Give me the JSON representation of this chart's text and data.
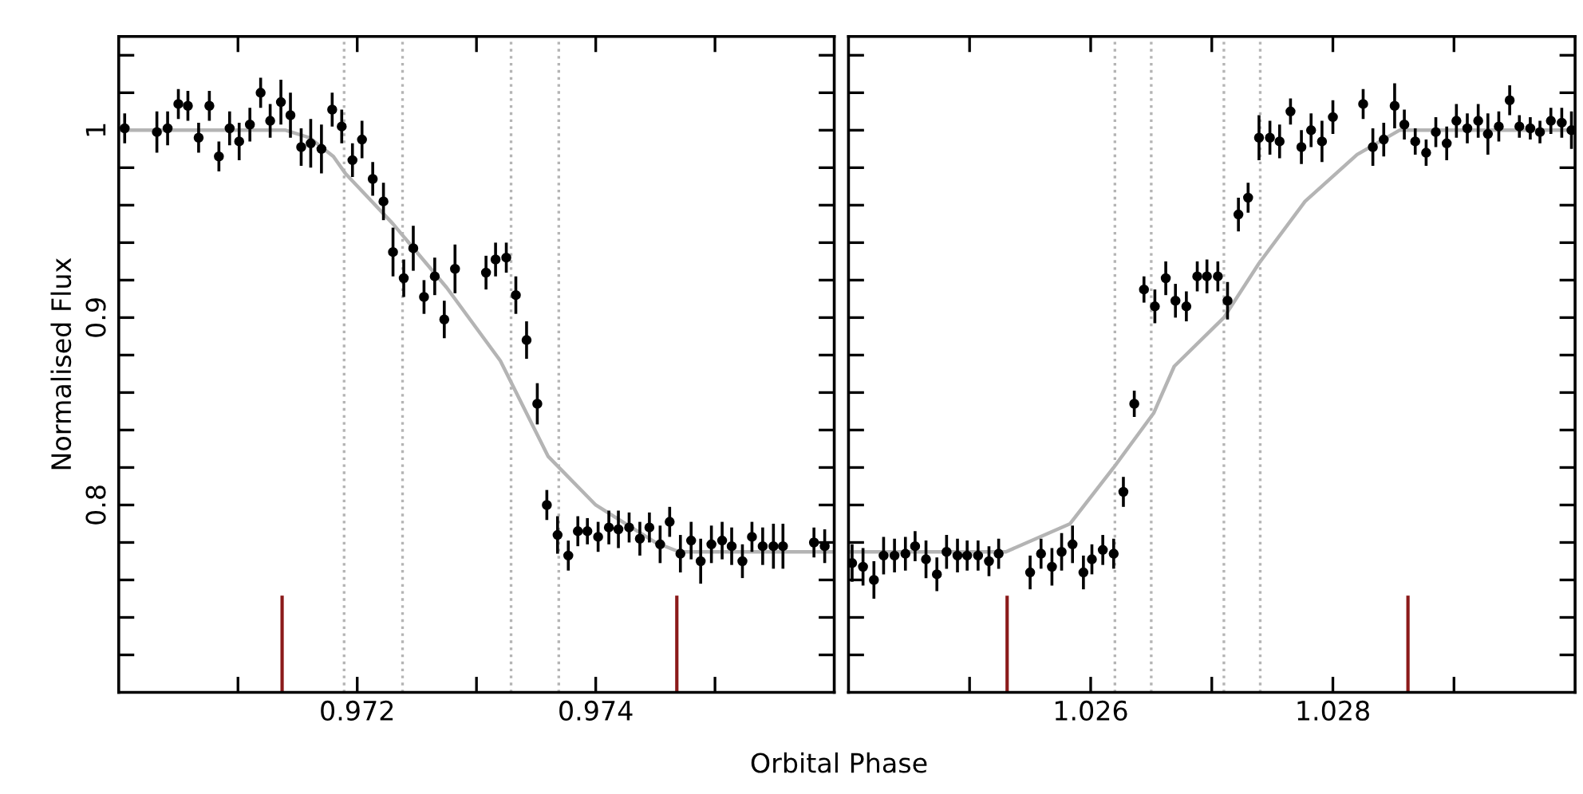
{
  "chart_data": [
    {
      "type": "scatter",
      "xlabel": "Orbital Phase",
      "ylabel": "Normalised Flux",
      "xlim": [
        0.97,
        0.976
      ],
      "ylim": [
        0.7,
        1.05
      ],
      "xticks": [
        {
          "value": 0.971,
          "label": null
        },
        {
          "value": 0.972,
          "label": "0.972"
        },
        {
          "value": 0.973,
          "label": null
        },
        {
          "value": 0.974,
          "label": "0.974"
        },
        {
          "value": 0.975,
          "label": null
        }
      ],
      "yticks": [
        {
          "value": 0.72,
          "label": null
        },
        {
          "value": 0.74,
          "label": null
        },
        {
          "value": 0.76,
          "label": null
        },
        {
          "value": 0.78,
          "label": null
        },
        {
          "value": 0.8,
          "label": "0.8"
        },
        {
          "value": 0.82,
          "label": null
        },
        {
          "value": 0.84,
          "label": null
        },
        {
          "value": 0.86,
          "label": null
        },
        {
          "value": 0.88,
          "label": null
        },
        {
          "value": 0.9,
          "label": "0.9"
        },
        {
          "value": 0.92,
          "label": null
        },
        {
          "value": 0.94,
          "label": null
        },
        {
          "value": 0.96,
          "label": null
        },
        {
          "value": 0.98,
          "label": null
        },
        {
          "value": 1,
          "label": "1"
        },
        {
          "value": 1.02,
          "label": null
        },
        {
          "value": 1.04,
          "label": null
        }
      ],
      "grid": false,
      "series": [
        {
          "marker": "circle",
          "color": "#000000",
          "x": [
            0.97005,
            0.97032,
            0.97041,
            0.9705,
            0.97058,
            0.97067,
            0.97076,
            0.97084,
            0.97093,
            0.97101,
            0.9711,
            0.97119,
            0.97127,
            0.97136,
            0.97144,
            0.97153,
            0.97161,
            0.9717,
            0.97179,
            0.97187,
            0.97196,
            0.97204,
            0.97213,
            0.97222,
            0.9723,
            0.97239,
            0.97247,
            0.97256,
            0.97265,
            0.97273,
            0.97282,
            0.97308,
            0.97316,
            0.97325,
            0.97333,
            0.97342,
            0.97351,
            0.97359,
            0.97368,
            0.97377,
            0.97385,
            0.97393,
            0.97402,
            0.97411,
            0.97419,
            0.97428,
            0.97437,
            0.97445,
            0.97454,
            0.97462,
            0.97471,
            0.9748,
            0.97488,
            0.97497,
            0.97506,
            0.97514,
            0.97523,
            0.97531,
            0.9754,
            0.97549,
            0.97557,
            0.97583,
            0.97592
          ],
          "values": [
            1.001,
            0.999,
            1.001,
            1.014,
            1.013,
            0.996,
            1.013,
            0.986,
            1.001,
            0.994,
            1.003,
            1.02,
            1.005,
            1.015,
            1.008,
            0.991,
            0.993,
            0.99,
            1.011,
            1.002,
            0.984,
            0.995,
            0.974,
            0.962,
            0.935,
            0.921,
            0.937,
            0.911,
            0.922,
            0.899,
            0.926,
            0.924,
            0.931,
            0.932,
            0.912,
            0.888,
            0.854,
            0.8,
            0.784,
            0.773,
            0.786,
            0.786,
            0.783,
            0.788,
            0.787,
            0.788,
            0.782,
            0.788,
            0.779,
            0.791,
            0.774,
            0.781,
            0.77,
            0.779,
            0.781,
            0.778,
            0.77,
            0.783,
            0.778,
            0.778,
            0.778,
            0.78,
            0.778
          ],
          "errors": [
            0.008,
            0.011,
            0.009,
            0.008,
            0.008,
            0.008,
            0.008,
            0.008,
            0.009,
            0.01,
            0.009,
            0.008,
            0.009,
            0.012,
            0.012,
            0.01,
            0.013,
            0.013,
            0.009,
            0.009,
            0.009,
            0.01,
            0.009,
            0.01,
            0.013,
            0.01,
            0.012,
            0.009,
            0.01,
            0.01,
            0.013,
            0.009,
            0.009,
            0.008,
            0.01,
            0.01,
            0.011,
            0.008,
            0.01,
            0.008,
            0.008,
            0.007,
            0.008,
            0.009,
            0.01,
            0.008,
            0.009,
            0.008,
            0.01,
            0.008,
            0.01,
            0.01,
            0.012,
            0.01,
            0.01,
            0.01,
            0.009,
            0.008,
            0.01,
            0.012,
            0.012,
            0.008,
            0.009
          ]
        },
        {
          "type": "line",
          "color": "#b4b4b4",
          "x": [
            0.97,
            0.9714,
            0.9716,
            0.9718,
            0.9719,
            0.9723,
            0.97275,
            0.9732,
            0.9736,
            0.974,
            0.9745,
            0.9747,
            0.976
          ],
          "values": [
            1.0,
            1.0,
            0.996,
            0.986,
            0.977,
            0.95,
            0.916,
            0.877,
            0.826,
            0.8,
            0.78,
            0.775,
            0.775
          ]
        }
      ],
      "ref_lines": [
        {
          "axis": "x",
          "value": 0.97189,
          "color": "#b4b4b4",
          "line_style": "dotted"
        },
        {
          "axis": "x",
          "value": 0.97238,
          "color": "#b4b4b4",
          "line_style": "dotted"
        },
        {
          "axis": "x",
          "value": 0.97329,
          "color": "#b4b4b4",
          "line_style": "dotted"
        },
        {
          "axis": "x",
          "value": 0.97369,
          "color": "#b4b4b4",
          "line_style": "dotted"
        },
        {
          "axis": "x",
          "value": 0.97137,
          "color": "#8b1a1a",
          "line_style": "solid"
        },
        {
          "axis": "x",
          "value": 0.97468,
          "color": "#8b1a1a",
          "line_style": "solid"
        }
      ]
    },
    {
      "type": "scatter",
      "xlim": [
        1.024,
        1.03
      ],
      "ylim": [
        0.7,
        1.05
      ],
      "tick_labels": "x",
      "xticks": [
        {
          "value": 1.025,
          "label": null
        },
        {
          "value": 1.026,
          "label": "1.026"
        },
        {
          "value": 1.027,
          "label": null
        },
        {
          "value": 1.028,
          "label": "1.028"
        },
        {
          "value": 1.029,
          "label": null
        }
      ],
      "yticks": [
        {
          "value": 0.72,
          "label": null
        },
        {
          "value": 0.74,
          "label": null
        },
        {
          "value": 0.76,
          "label": null
        },
        {
          "value": 0.78,
          "label": null
        },
        {
          "value": 0.8,
          "label": null
        },
        {
          "value": 0.82,
          "label": null
        },
        {
          "value": 0.84,
          "label": null
        },
        {
          "value": 0.86,
          "label": null
        },
        {
          "value": 0.88,
          "label": null
        },
        {
          "value": 0.9,
          "label": null
        },
        {
          "value": 0.92,
          "label": null
        },
        {
          "value": 0.94,
          "label": null
        },
        {
          "value": 0.96,
          "label": null
        },
        {
          "value": 0.98,
          "label": null
        },
        {
          "value": 1,
          "label": null
        },
        {
          "value": 1.02,
          "label": null
        },
        {
          "value": 1.04,
          "label": null
        }
      ],
      "grid": false,
      "series": [
        {
          "marker": "circle",
          "color": "#000000",
          "x": [
            1.02403,
            1.02412,
            1.02421,
            1.02429,
            1.02438,
            1.02447,
            1.02455,
            1.02464,
            1.02473,
            1.02481,
            1.0249,
            1.02498,
            1.02507,
            1.02516,
            1.02524,
            1.0255,
            1.02559,
            1.02568,
            1.02576,
            1.02585,
            1.02594,
            1.02601,
            1.0261,
            1.02619,
            1.02627,
            1.02636,
            1.02644,
            1.02653,
            1.02662,
            1.0267,
            1.02679,
            1.02688,
            1.02696,
            1.02705,
            1.02713,
            1.02722,
            1.0273,
            1.02739,
            1.02748,
            1.02756,
            1.02765,
            1.02774,
            1.02782,
            1.02791,
            1.028,
            1.02825,
            1.02833,
            1.02842,
            1.02851,
            1.02859,
            1.02868,
            1.02877,
            1.02885,
            1.02894,
            1.02902,
            1.02911,
            1.0292,
            1.02928,
            1.02937,
            1.02946,
            1.02954,
            1.02963,
            1.02971,
            1.0298,
            1.02989,
            1.02997
          ],
          "values": [
            0.769,
            0.767,
            0.76,
            0.773,
            0.773,
            0.774,
            0.778,
            0.771,
            0.763,
            0.775,
            0.773,
            0.773,
            0.773,
            0.77,
            0.774,
            0.764,
            0.774,
            0.767,
            0.775,
            0.779,
            0.764,
            0.771,
            0.776,
            0.774,
            0.807,
            0.854,
            0.915,
            0.906,
            0.921,
            0.909,
            0.906,
            0.922,
            0.922,
            0.922,
            0.909,
            0.955,
            0.964,
            0.996,
            0.996,
            0.994,
            1.01,
            0.991,
            1.0,
            0.994,
            1.007,
            1.014,
            0.991,
            0.995,
            1.013,
            1.003,
            0.994,
            0.988,
            0.999,
            0.993,
            1.005,
            1.001,
            1.005,
            0.998,
            1.002,
            1.016,
            1.002,
            1.001,
            0.999,
            1.005,
            1.004,
            1.0
          ],
          "errors": [
            0.01,
            0.01,
            0.01,
            0.01,
            0.009,
            0.009,
            0.008,
            0.01,
            0.009,
            0.009,
            0.009,
            0.008,
            0.008,
            0.008,
            0.008,
            0.009,
            0.008,
            0.01,
            0.01,
            0.01,
            0.009,
            0.008,
            0.008,
            0.008,
            0.008,
            0.007,
            0.007,
            0.009,
            0.009,
            0.009,
            0.008,
            0.008,
            0.009,
            0.008,
            0.01,
            0.009,
            0.008,
            0.012,
            0.009,
            0.009,
            0.007,
            0.009,
            0.009,
            0.011,
            0.009,
            0.008,
            0.01,
            0.009,
            0.012,
            0.008,
            0.007,
            0.007,
            0.008,
            0.009,
            0.009,
            0.008,
            0.009,
            0.011,
            0.008,
            0.008,
            0.006,
            0.006,
            0.006,
            0.007,
            0.008,
            0.01
          ]
        },
        {
          "type": "line",
          "color": "#b4b4b4",
          "x": [
            1.024,
            1.0253,
            1.02583,
            1.02619,
            1.02652,
            1.02669,
            1.0271,
            1.02739,
            1.02777,
            1.0282,
            1.02855,
            1.03
          ],
          "values": [
            0.775,
            0.775,
            0.79,
            0.82,
            0.849,
            0.874,
            0.9,
            0.929,
            0.962,
            0.987,
            1.0,
            1.0
          ]
        }
      ],
      "ref_lines": [
        {
          "axis": "x",
          "value": 1.0262,
          "color": "#b4b4b4",
          "line_style": "dotted"
        },
        {
          "axis": "x",
          "value": 1.0265,
          "color": "#b4b4b4",
          "line_style": "dotted"
        },
        {
          "axis": "x",
          "value": 1.0271,
          "color": "#b4b4b4",
          "line_style": "dotted"
        },
        {
          "axis": "x",
          "value": 1.0274,
          "color": "#b4b4b4",
          "line_style": "dotted"
        },
        {
          "axis": "x",
          "value": 1.02531,
          "color": "#8b1a1a",
          "line_style": "solid"
        },
        {
          "axis": "x",
          "value": 1.02862,
          "color": "#8b1a1a",
          "line_style": "solid"
        }
      ]
    }
  ]
}
